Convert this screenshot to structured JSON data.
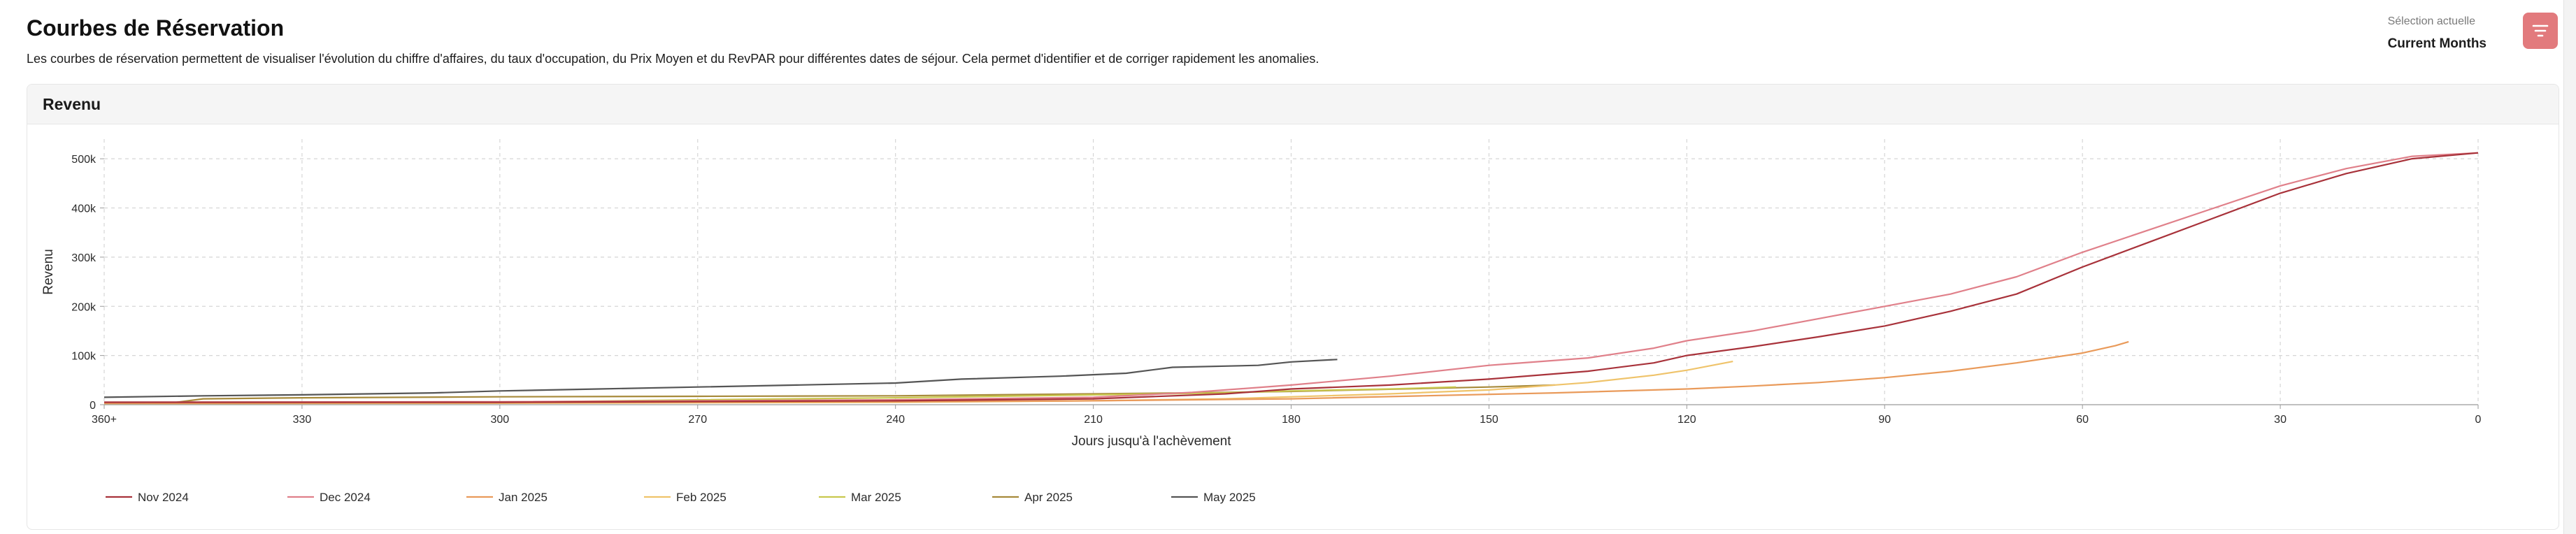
{
  "header": {
    "title": "Courbes de Réservation",
    "subtitle": "Les courbes de réservation permettent de visualiser l'évolution du chiffre d'affaires, du taux d'occupation, du Prix Moyen et du RevPAR pour différentes dates de séjour. Cela permet d'identifier et de corriger rapidement les anomalies.",
    "selection_label": "Sélection actuelle",
    "selection_value": "Current Months",
    "filter_icon": "filter-icon"
  },
  "card": {
    "title": "Revenu"
  },
  "chart_data": {
    "type": "line",
    "xlabel": "Jours jusqu'à l'achèvement",
    "ylabel": "Revenu",
    "xlim": [
      360,
      0
    ],
    "ylim": [
      0,
      540000
    ],
    "x_ticks": [
      360,
      330,
      300,
      270,
      240,
      210,
      180,
      150,
      120,
      90,
      60,
      30,
      0
    ],
    "x_tick_labels": [
      "360+",
      "330",
      "300",
      "270",
      "240",
      "210",
      "180",
      "150",
      "120",
      "90",
      "60",
      "30",
      "0"
    ],
    "y_ticks": [
      0,
      100000,
      200000,
      300000,
      400000,
      500000
    ],
    "y_tick_labels": [
      "0",
      "100k",
      "200k",
      "300k",
      "400k",
      "500k"
    ],
    "grid": true,
    "legend_position": "bottom-left",
    "series": [
      {
        "name": "Nov 2024",
        "color": "#a8323a",
        "points": [
          [
            360,
            5000
          ],
          [
            300,
            5000
          ],
          [
            240,
            8000
          ],
          [
            210,
            12000
          ],
          [
            190,
            22000
          ],
          [
            180,
            32000
          ],
          [
            165,
            40000
          ],
          [
            150,
            52000
          ],
          [
            135,
            68000
          ],
          [
            125,
            85000
          ],
          [
            120,
            100000
          ],
          [
            110,
            118000
          ],
          [
            100,
            138000
          ],
          [
            90,
            160000
          ],
          [
            80,
            190000
          ],
          [
            70,
            225000
          ],
          [
            60,
            280000
          ],
          [
            50,
            330000
          ],
          [
            40,
            380000
          ],
          [
            30,
            430000
          ],
          [
            20,
            470000
          ],
          [
            10,
            500000
          ],
          [
            0,
            512000
          ]
        ]
      },
      {
        "name": "Dec 2024",
        "color": "#e0808a",
        "points": [
          [
            360,
            5000
          ],
          [
            300,
            6000
          ],
          [
            240,
            10000
          ],
          [
            210,
            15000
          ],
          [
            195,
            25000
          ],
          [
            180,
            40000
          ],
          [
            165,
            58000
          ],
          [
            150,
            80000
          ],
          [
            135,
            95000
          ],
          [
            125,
            115000
          ],
          [
            120,
            130000
          ],
          [
            110,
            150000
          ],
          [
            100,
            175000
          ],
          [
            90,
            200000
          ],
          [
            80,
            225000
          ],
          [
            70,
            260000
          ],
          [
            60,
            310000
          ],
          [
            50,
            355000
          ],
          [
            40,
            400000
          ],
          [
            30,
            445000
          ],
          [
            20,
            480000
          ],
          [
            10,
            505000
          ],
          [
            0,
            512000
          ]
        ]
      },
      {
        "name": "Jan 2025",
        "color": "#e99a5a",
        "points": [
          [
            360,
            3000
          ],
          [
            300,
            4000
          ],
          [
            240,
            6000
          ],
          [
            210,
            8000
          ],
          [
            180,
            12000
          ],
          [
            160,
            18000
          ],
          [
            140,
            24000
          ],
          [
            120,
            32000
          ],
          [
            110,
            38000
          ],
          [
            100,
            45000
          ],
          [
            90,
            55000
          ],
          [
            80,
            68000
          ],
          [
            70,
            85000
          ],
          [
            60,
            105000
          ],
          [
            55,
            120000
          ],
          [
            53,
            128000
          ]
        ]
      },
      {
        "name": "Feb 2025",
        "color": "#efc36a",
        "points": [
          [
            360,
            2000
          ],
          [
            300,
            3000
          ],
          [
            240,
            5000
          ],
          [
            210,
            8000
          ],
          [
            190,
            12000
          ],
          [
            180,
            16000
          ],
          [
            165,
            22000
          ],
          [
            150,
            30000
          ],
          [
            135,
            45000
          ],
          [
            125,
            60000
          ],
          [
            120,
            70000
          ],
          [
            113,
            88000
          ]
        ]
      },
      {
        "name": "Mar 2025",
        "color": "#c9c84e",
        "points": [
          [
            360,
            2000
          ],
          [
            330,
            3000
          ],
          [
            300,
            5000
          ],
          [
            270,
            10000
          ],
          [
            240,
            14000
          ],
          [
            210,
            20000
          ],
          [
            190,
            24000
          ],
          [
            180,
            28000
          ],
          [
            165,
            32000
          ],
          [
            155,
            36000
          ]
        ]
      },
      {
        "name": "Apr 2025",
        "color": "#a78a3a",
        "points": [
          [
            360,
            3000
          ],
          [
            349,
            5000
          ],
          [
            345,
            12000
          ],
          [
            330,
            14000
          ],
          [
            300,
            16000
          ],
          [
            270,
            17000
          ],
          [
            240,
            18000
          ],
          [
            210,
            22000
          ],
          [
            195,
            24000
          ],
          [
            180,
            27000
          ],
          [
            170,
            30000
          ],
          [
            160,
            33000
          ],
          [
            150,
            36000
          ],
          [
            140,
            40000
          ]
        ]
      },
      {
        "name": "May 2025",
        "color": "#555555",
        "points": [
          [
            360,
            15000
          ],
          [
            345,
            18000
          ],
          [
            330,
            20000
          ],
          [
            320,
            22000
          ],
          [
            310,
            24000
          ],
          [
            300,
            28000
          ],
          [
            285,
            32000
          ],
          [
            270,
            36000
          ],
          [
            255,
            40000
          ],
          [
            240,
            44000
          ],
          [
            230,
            52000
          ],
          [
            215,
            58000
          ],
          [
            205,
            64000
          ],
          [
            198,
            76000
          ],
          [
            185,
            80000
          ],
          [
            180,
            87000
          ],
          [
            173,
            92000
          ]
        ]
      }
    ]
  }
}
